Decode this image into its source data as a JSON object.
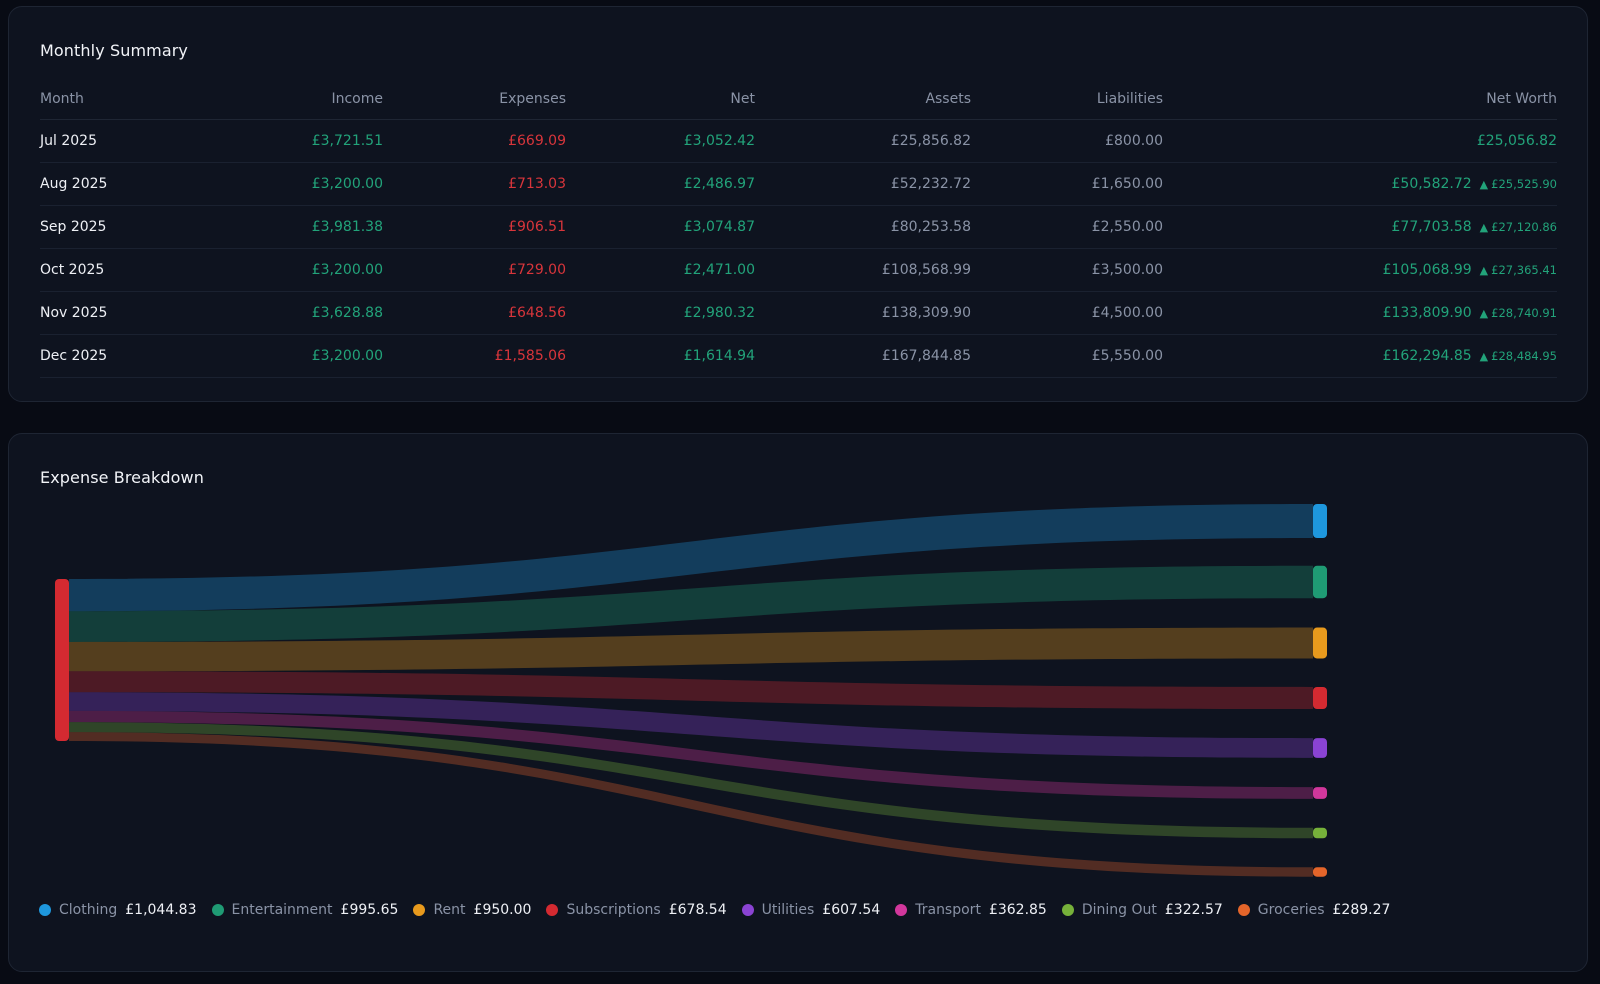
{
  "summary": {
    "title": "Monthly Summary",
    "columns": [
      "Month",
      "Income",
      "Expenses",
      "Net",
      "Assets",
      "Liabilities",
      "Net Worth"
    ],
    "rows": [
      {
        "month": "Jul 2025",
        "income": "£3,721.51",
        "expenses": "£669.09",
        "net": "£3,052.42",
        "assets": "£25,856.82",
        "liabilities": "£800.00",
        "net_worth": "£25,056.82",
        "delta": ""
      },
      {
        "month": "Aug 2025",
        "income": "£3,200.00",
        "expenses": "£713.03",
        "net": "£2,486.97",
        "assets": "£52,232.72",
        "liabilities": "£1,650.00",
        "net_worth": "£50,582.72",
        "delta": "£25,525.90"
      },
      {
        "month": "Sep 2025",
        "income": "£3,981.38",
        "expenses": "£906.51",
        "net": "£3,074.87",
        "assets": "£80,253.58",
        "liabilities": "£2,550.00",
        "net_worth": "£77,703.58",
        "delta": "£27,120.86"
      },
      {
        "month": "Oct 2025",
        "income": "£3,200.00",
        "expenses": "£729.00",
        "net": "£2,471.00",
        "assets": "£108,568.99",
        "liabilities": "£3,500.00",
        "net_worth": "£105,068.99",
        "delta": "£27,365.41"
      },
      {
        "month": "Nov 2025",
        "income": "£3,628.88",
        "expenses": "£648.56",
        "net": "£2,980.32",
        "assets": "£138,309.90",
        "liabilities": "£4,500.00",
        "net_worth": "£133,809.90",
        "delta": "£28,740.91"
      },
      {
        "month": "Dec 2025",
        "income": "£3,200.00",
        "expenses": "£1,585.06",
        "net": "£1,614.94",
        "assets": "£167,844.85",
        "liabilities": "£5,550.00",
        "net_worth": "£162,294.85",
        "delta": "£28,484.95"
      }
    ]
  },
  "breakdown": {
    "title": "Expense Breakdown"
  },
  "chart_data": {
    "type": "sankey",
    "title": "Expense Breakdown",
    "source_color": "#d42a31",
    "categories": [
      "Clothing",
      "Entertainment",
      "Rent",
      "Subscriptions",
      "Utilities",
      "Transport",
      "Dining Out",
      "Groceries"
    ],
    "values": [
      1044.83,
      995.65,
      950.0,
      678.54,
      607.54,
      362.85,
      322.57,
      289.27
    ],
    "value_labels": [
      "£1,044.83",
      "£995.65",
      "£950.00",
      "£678.54",
      "£607.54",
      "£362.85",
      "£322.57",
      "£289.27"
    ],
    "colors": [
      "#1e97dd",
      "#1f9b74",
      "#e89a1d",
      "#d42a31",
      "#8a43d3",
      "#d2379c",
      "#76b13a",
      "#e4652a"
    ],
    "legend_placement": "bottom-left"
  }
}
